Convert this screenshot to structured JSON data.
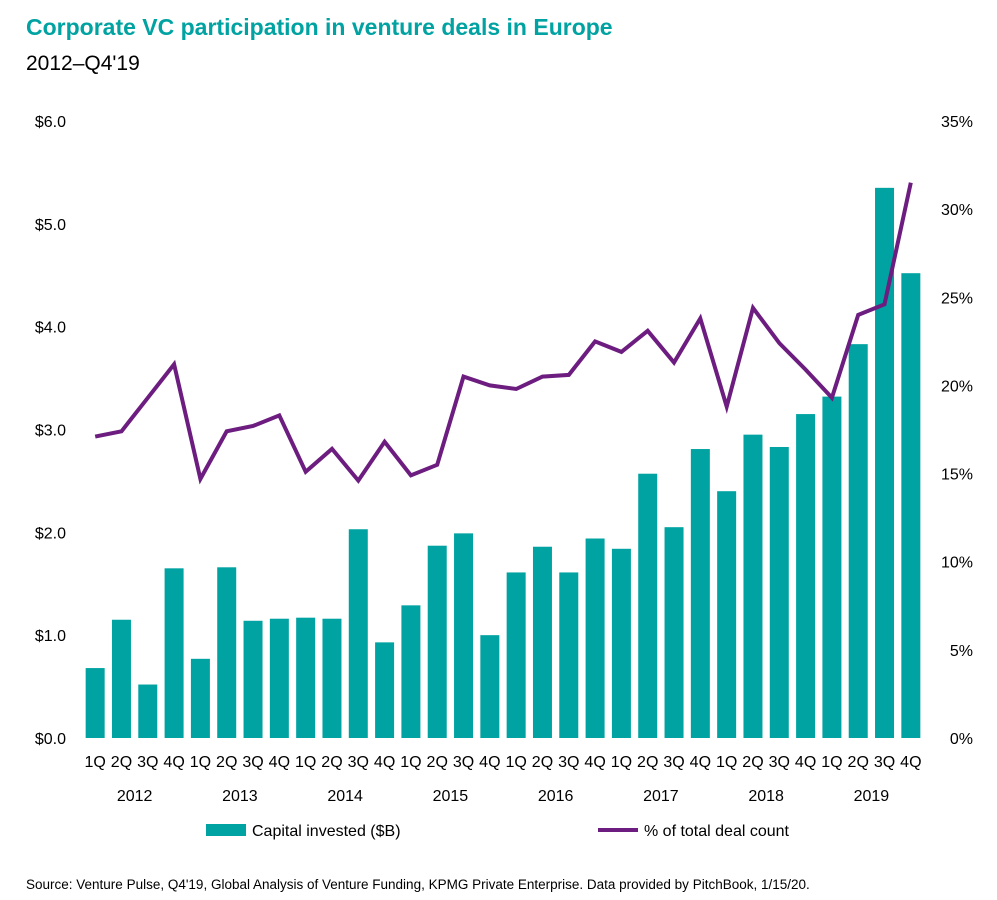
{
  "title": "Corporate VC participation in venture deals in Europe",
  "subtitle": "2012–Q4'19",
  "source": "Source: Venture Pulse, Q4'19, Global Analysis of Venture Funding, KPMG Private Enterprise. Data provided by PitchBook, 1/15/20.",
  "colors": {
    "bar": "#00A3A1",
    "line": "#6C1D7F",
    "title": "#00A3A1"
  },
  "chart_data": {
    "type": "bar",
    "categories": [
      "1Q",
      "2Q",
      "3Q",
      "4Q",
      "1Q",
      "2Q",
      "3Q",
      "4Q",
      "1Q",
      "2Q",
      "3Q",
      "4Q",
      "1Q",
      "2Q",
      "3Q",
      "4Q",
      "1Q",
      "2Q",
      "3Q",
      "4Q",
      "1Q",
      "2Q",
      "3Q",
      "4Q",
      "1Q",
      "2Q",
      "3Q",
      "4Q",
      "1Q",
      "2Q",
      "3Q",
      "4Q"
    ],
    "years": [
      "2012",
      "2013",
      "2014",
      "2015",
      "2016",
      "2017",
      "2018",
      "2019"
    ],
    "series": [
      {
        "name": "Capital invested ($B)",
        "type": "bar",
        "axis": "left",
        "values": [
          0.68,
          1.15,
          0.52,
          1.65,
          0.77,
          1.66,
          1.14,
          1.16,
          1.17,
          1.16,
          2.03,
          0.93,
          1.29,
          1.87,
          1.99,
          1.0,
          1.61,
          1.86,
          1.61,
          1.94,
          1.84,
          2.57,
          2.05,
          2.81,
          2.4,
          2.95,
          2.83,
          3.15,
          3.32,
          3.83,
          5.35,
          4.52
        ]
      },
      {
        "name": "% of total deal count",
        "type": "line",
        "axis": "right",
        "values": [
          17.1,
          17.4,
          19.3,
          21.2,
          14.7,
          17.4,
          17.7,
          18.3,
          15.1,
          16.4,
          14.6,
          16.8,
          14.9,
          15.5,
          20.5,
          20.0,
          19.8,
          20.5,
          20.6,
          22.5,
          21.9,
          23.1,
          21.3,
          23.8,
          18.8,
          24.4,
          22.4,
          20.9,
          19.3,
          24.0,
          24.6,
          31.5
        ]
      }
    ],
    "y_left": {
      "ylim": [
        0,
        6
      ],
      "ticks": [
        "$0.0",
        "$1.0",
        "$2.0",
        "$3.0",
        "$4.0",
        "$5.0",
        "$6.0"
      ]
    },
    "y_right": {
      "ylim": [
        0,
        35
      ],
      "ticks": [
        "0%",
        "5%",
        "10%",
        "15%",
        "20%",
        "25%",
        "30%",
        "35%"
      ]
    },
    "xlabel": "",
    "ylabel": "",
    "grid": false,
    "legend": "bottom"
  }
}
